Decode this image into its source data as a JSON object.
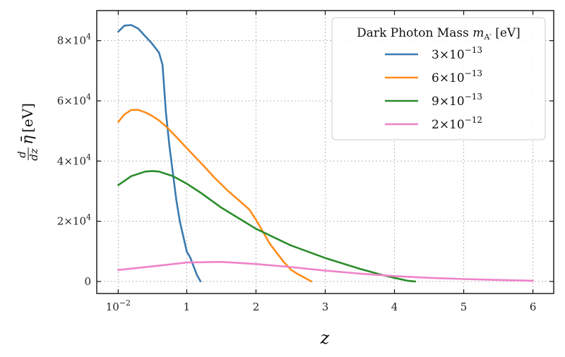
{
  "chart_data": {
    "type": "line",
    "xlabel": "z",
    "ylabel": "d/dz η̄ [eV]",
    "xlim": [
      -0.3,
      6.3
    ],
    "ylim": [
      -4000,
      90000
    ],
    "xticks": [
      0.01,
      1,
      2,
      3,
      4,
      5,
      6
    ],
    "xtick_labels": [
      {
        "base": "10",
        "sup": "−2"
      },
      {
        "base": "1",
        "sup": ""
      },
      {
        "base": "2",
        "sup": ""
      },
      {
        "base": "3",
        "sup": ""
      },
      {
        "base": "4",
        "sup": ""
      },
      {
        "base": "5",
        "sup": ""
      },
      {
        "base": "6",
        "sup": ""
      }
    ],
    "yticks": [
      0,
      20000,
      40000,
      60000,
      80000
    ],
    "ytick_labels": [
      {
        "base": "0",
        "sup": ""
      },
      {
        "base": "2×10",
        "sup": "4"
      },
      {
        "base": "4×10",
        "sup": "4"
      },
      {
        "base": "6×10",
        "sup": "4"
      },
      {
        "base": "8×10",
        "sup": "4"
      }
    ],
    "grid": true,
    "legend": {
      "placement": "top-right",
      "title_text": "Dark Photon Mass ",
      "title_math": "m",
      "title_sub": "A′",
      "title_unit": " [eV]"
    },
    "series": [
      {
        "name": "3×10−13",
        "label_base": "3×10",
        "label_sup": "−13",
        "color": "#3a7ab0",
        "x": [
          0.01,
          0.1,
          0.2,
          0.3,
          0.4,
          0.5,
          0.6,
          0.65,
          0.7,
          0.75,
          0.8,
          0.85,
          0.9,
          0.95,
          1.0,
          1.05,
          1.1,
          1.15,
          1.2
        ],
        "y": [
          83000,
          85000,
          85200,
          84000,
          81500,
          79000,
          76000,
          72000,
          56000,
          45000,
          36000,
          27000,
          20000,
          15000,
          10000,
          8000,
          5000,
          2000,
          0
        ]
      },
      {
        "name": "6×10−13",
        "label_base": "6×10",
        "label_sup": "−13",
        "color": "#ff8c1a",
        "x": [
          0.01,
          0.1,
          0.2,
          0.3,
          0.4,
          0.5,
          0.6,
          0.7,
          0.8,
          0.9,
          1.0,
          1.2,
          1.4,
          1.6,
          1.8,
          1.9,
          2.0,
          2.2,
          2.4,
          2.5,
          2.6,
          2.8
        ],
        "y": [
          53000,
          55500,
          57000,
          57000,
          56200,
          55000,
          53500,
          51500,
          49200,
          46800,
          44300,
          39500,
          34500,
          30000,
          26000,
          24000,
          20500,
          12500,
          6500,
          4000,
          2500,
          0
        ]
      },
      {
        "name": "9×10−13",
        "label_base": "9×10",
        "label_sup": "−13",
        "color": "#2a8c2a",
        "x": [
          0.01,
          0.2,
          0.4,
          0.5,
          0.6,
          0.8,
          1.0,
          1.2,
          1.5,
          2.0,
          2.5,
          3.0,
          3.5,
          3.8,
          4.0,
          4.2,
          4.3
        ],
        "y": [
          32000,
          35000,
          36500,
          36700,
          36500,
          35000,
          32500,
          29500,
          24500,
          17500,
          12000,
          7800,
          4200,
          2300,
          1200,
          200,
          0
        ]
      },
      {
        "name": "2×10−12",
        "label_base": "2×10",
        "label_sup": "−12",
        "color": "#ee82c8",
        "x": [
          0.01,
          0.5,
          1.0,
          1.5,
          2.0,
          2.5,
          3.0,
          3.5,
          4.0,
          4.5,
          5.0,
          5.5,
          6.0
        ],
        "y": [
          3800,
          5000,
          6300,
          6500,
          5800,
          4800,
          3600,
          2600,
          1800,
          1200,
          800,
          500,
          250
        ]
      }
    ]
  }
}
